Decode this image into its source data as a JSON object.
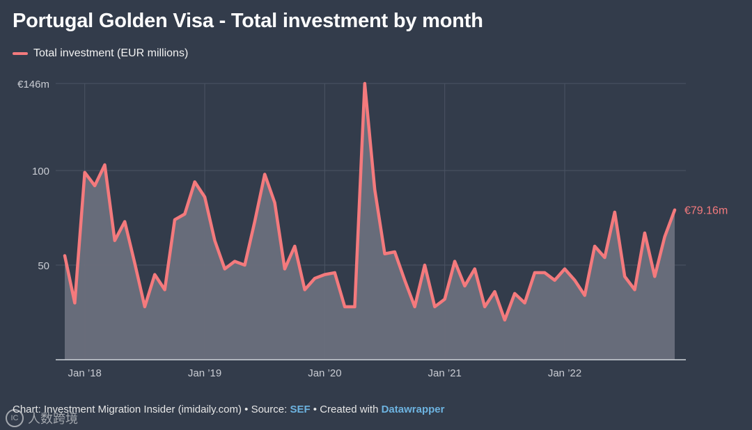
{
  "colors": {
    "background": "#333c4b",
    "line": "#f47a7d",
    "area": "#6a6f7c",
    "grid": "#4b5464",
    "axis_text": "#c9ccd3",
    "baseline": "#d0d3d9",
    "link": "#6db3e0"
  },
  "chart_data": {
    "type": "area",
    "title": "Portugal Golden Visa - Total investment by month",
    "legend": [
      "Total investment (EUR millions)"
    ],
    "legend_position": "top-left",
    "series": [
      {
        "name": "Total investment (EUR millions)",
        "start": "2017-11",
        "values": [
          55,
          30,
          99,
          92,
          103,
          63,
          73,
          51,
          28,
          45,
          37,
          74,
          77,
          94,
          86,
          63,
          48,
          52,
          50,
          73,
          98,
          83,
          48,
          60,
          37,
          43,
          45,
          46,
          28,
          28,
          146,
          90,
          56,
          57,
          42,
          28,
          50,
          28,
          32,
          52,
          39,
          48,
          28,
          36,
          21,
          35,
          30,
          46,
          46,
          42,
          48,
          42,
          34,
          60,
          54,
          78,
          44,
          37,
          67,
          44,
          65,
          79.16
        ]
      }
    ],
    "x_ticks": [
      "Jan ’18",
      "Jan ’19",
      "Jan ’20",
      "Jan ’21",
      "Jan ’22"
    ],
    "x_tick_indices": [
      2,
      14,
      26,
      38,
      50
    ],
    "y_ticks": [
      {
        "value": 146,
        "label": "€146m"
      },
      {
        "value": 100,
        "label": "100"
      },
      {
        "value": 50,
        "label": "50"
      }
    ],
    "ylim": [
      0,
      146
    ],
    "end_label": "€79.16m",
    "grid": true
  },
  "footer": {
    "prefix": "Chart: Investment Migration Insider (imidaily.com) • Source: ",
    "source": "SEF",
    "middle": " • Created with ",
    "tool": "Datawrapper"
  },
  "watermark": {
    "logo": "IC",
    "text": "人数跨境"
  }
}
